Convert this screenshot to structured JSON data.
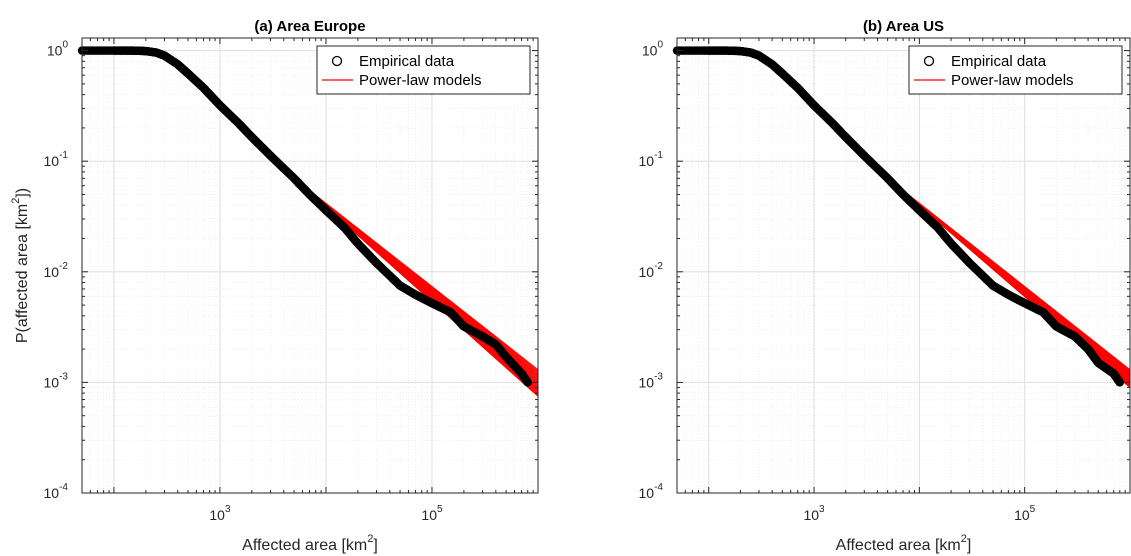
{
  "chart_data": [
    {
      "type": "scatter",
      "title": "(a) Area Europe",
      "xlabel": "Affected area [km",
      "xlabel_sup": "2",
      "xlabel_tail": "]",
      "ylabel": "P(affected area [km",
      "ylabel_sup": "2",
      "ylabel_tail": "])",
      "xscale": "log",
      "yscale": "log",
      "xlim": [
        50,
        1000000
      ],
      "ylim": [
        0.0001,
        1.3
      ],
      "grid": true,
      "legend_position": "top-right",
      "x_ticks": [
        {
          "value": 1000,
          "base": "10",
          "exp": "3"
        },
        {
          "value": 100000,
          "base": "10",
          "exp": "5"
        }
      ],
      "y_ticks": [
        {
          "value": 1,
          "base": "10",
          "exp": "0"
        },
        {
          "value": 0.1,
          "base": "10",
          "exp": "-1"
        },
        {
          "value": 0.01,
          "base": "10",
          "exp": "-2"
        },
        {
          "value": 0.001,
          "base": "10",
          "exp": "-3"
        },
        {
          "value": 0.0001,
          "base": "10",
          "exp": "-4"
        }
      ],
      "series": [
        {
          "name": "Empirical data",
          "marker": "circle",
          "color": "#000000",
          "points": [
            [
              50,
              1.0
            ],
            [
              100,
              1.0
            ],
            [
              150,
              1.0
            ],
            [
              200,
              0.99
            ],
            [
              250,
              0.96
            ],
            [
              300,
              0.9
            ],
            [
              400,
              0.75
            ],
            [
              500,
              0.62
            ],
            [
              700,
              0.46
            ],
            [
              1000,
              0.32
            ],
            [
              1500,
              0.22
            ],
            [
              2000,
              0.165
            ],
            [
              3000,
              0.112
            ],
            [
              5000,
              0.07
            ],
            [
              7000,
              0.05
            ],
            [
              10000,
              0.036
            ],
            [
              15000,
              0.025
            ],
            [
              20000,
              0.018
            ],
            [
              30000,
              0.012
            ],
            [
              50000,
              0.0075
            ],
            [
              70000,
              0.0062
            ],
            [
              100000,
              0.0052
            ],
            [
              150000,
              0.0043
            ],
            [
              200000,
              0.0032
            ],
            [
              300000,
              0.0026
            ],
            [
              400000,
              0.0022
            ],
            [
              500000,
              0.0017
            ],
            [
              700000,
              0.0012
            ],
            [
              800000,
              0.001
            ]
          ]
        },
        {
          "name": "Power-law models",
          "line": true,
          "color": "#ff0000",
          "x_start": 5000,
          "x_end": 1000000,
          "y_start": 0.07,
          "y_end": [
            0.00075,
            0.0013
          ]
        }
      ]
    },
    {
      "type": "scatter",
      "title": "(b) Area US",
      "xlabel": "Affected area [km",
      "xlabel_sup": "2",
      "xlabel_tail": "]",
      "ylabel": "",
      "xscale": "log",
      "yscale": "log",
      "xlim": [
        50,
        1000000
      ],
      "ylim": [
        0.0001,
        1.3
      ],
      "grid": true,
      "legend_position": "top-right",
      "x_ticks": [
        {
          "value": 1000,
          "base": "10",
          "exp": "3"
        },
        {
          "value": 100000,
          "base": "10",
          "exp": "5"
        }
      ],
      "y_ticks": [
        {
          "value": 1,
          "base": "10",
          "exp": "0"
        },
        {
          "value": 0.1,
          "base": "10",
          "exp": "-1"
        },
        {
          "value": 0.01,
          "base": "10",
          "exp": "-2"
        },
        {
          "value": 0.001,
          "base": "10",
          "exp": "-3"
        },
        {
          "value": 0.0001,
          "base": "10",
          "exp": "-4"
        }
      ],
      "series": [
        {
          "name": "Empirical data",
          "marker": "circle",
          "color": "#000000",
          "points": [
            [
              50,
              1.0
            ],
            [
              100,
              1.0
            ],
            [
              150,
              1.0
            ],
            [
              200,
              0.99
            ],
            [
              250,
              0.96
            ],
            [
              300,
              0.9
            ],
            [
              400,
              0.75
            ],
            [
              500,
              0.62
            ],
            [
              700,
              0.46
            ],
            [
              1000,
              0.32
            ],
            [
              1500,
              0.22
            ],
            [
              2000,
              0.165
            ],
            [
              3000,
              0.112
            ],
            [
              5000,
              0.07
            ],
            [
              7000,
              0.05
            ],
            [
              10000,
              0.036
            ],
            [
              15000,
              0.025
            ],
            [
              20000,
              0.018
            ],
            [
              30000,
              0.012
            ],
            [
              50000,
              0.0075
            ],
            [
              70000,
              0.0062
            ],
            [
              100000,
              0.0052
            ],
            [
              150000,
              0.0043
            ],
            [
              200000,
              0.0032
            ],
            [
              300000,
              0.0026
            ],
            [
              400000,
              0.002
            ],
            [
              500000,
              0.0015
            ],
            [
              700000,
              0.0012
            ],
            [
              800000,
              0.001
            ]
          ]
        },
        {
          "name": "Power-law models",
          "line": true,
          "color": "#ff0000",
          "x_start": 5000,
          "x_end": 1000000,
          "y_start": 0.07,
          "y_end": [
            0.0009,
            0.0013
          ]
        }
      ]
    }
  ]
}
